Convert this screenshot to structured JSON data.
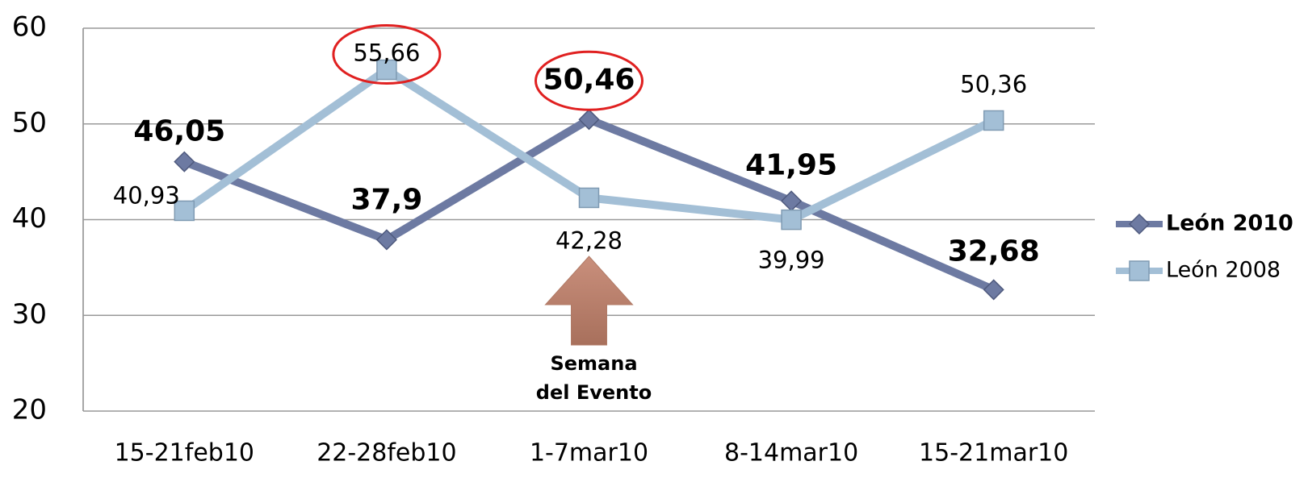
{
  "chart_data": {
    "type": "line",
    "categories": [
      "15-21feb10",
      "22-28feb10",
      "1-7mar10",
      "8-14mar10",
      "15-21mar10"
    ],
    "series": [
      {
        "name": "León 2010",
        "color": "#6d7aa2",
        "marker": "diamond",
        "values": [
          46.05,
          37.9,
          50.46,
          41.95,
          32.68
        ],
        "value_labels": [
          "46,05",
          "37,9",
          "50,46",
          "41,95",
          "32,68"
        ]
      },
      {
        "name": "León 2008",
        "color": "#a3bfd6",
        "marker": "square",
        "values": [
          40.93,
          55.66,
          42.28,
          39.99,
          50.36
        ],
        "value_labels": [
          "40,93",
          "55,66",
          "42,28",
          "39,99",
          "50,36"
        ]
      }
    ],
    "ylim": [
      20,
      60
    ],
    "yticks": [
      20,
      30,
      40,
      50,
      60
    ],
    "grid": true,
    "legend": "right",
    "annotation": [
      "Semana",
      "del Evento"
    ]
  }
}
